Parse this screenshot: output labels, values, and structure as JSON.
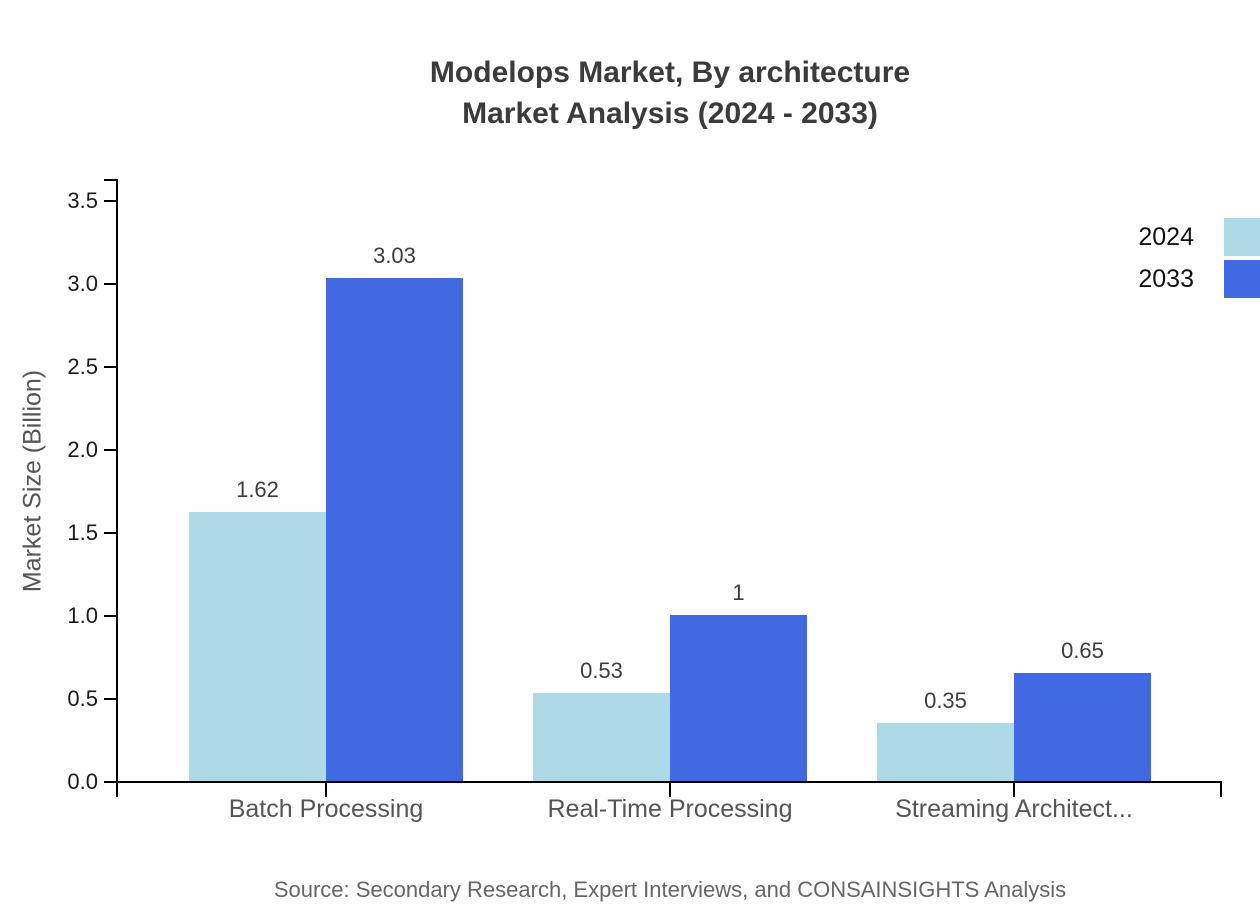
{
  "title": {
    "line1": "Modelops Market, By architecture",
    "line2": "Market Analysis (2024 - 2033)"
  },
  "source": "Source: Secondary Research, Expert Interviews, and CONSAINSIGHTS Analysis",
  "chart_data": {
    "type": "bar",
    "title": "Modelops Market, By architecture Market Analysis (2024 - 2033)",
    "categories": [
      "Batch Processing",
      "Real-Time Processing",
      "Streaming Architect..."
    ],
    "series": [
      {
        "name": "2024",
        "color": "#ADD8E6",
        "values": [
          1.62,
          0.53,
          0.35
        ]
      },
      {
        "name": "2033",
        "color": "#4169E1",
        "values": [
          3.03,
          1,
          0.65
        ]
      }
    ],
    "xlabel": "",
    "ylabel": "Market Size (Billion)",
    "ylim": [
      0,
      3.5
    ],
    "ytick_step": 0.5,
    "yticks": [
      "0.0",
      "0.5",
      "1.0",
      "1.5",
      "2.0",
      "2.5",
      "3.0",
      "3.5"
    ],
    "grid": false,
    "legend_position": "top-right",
    "axis_color": "#000000"
  }
}
